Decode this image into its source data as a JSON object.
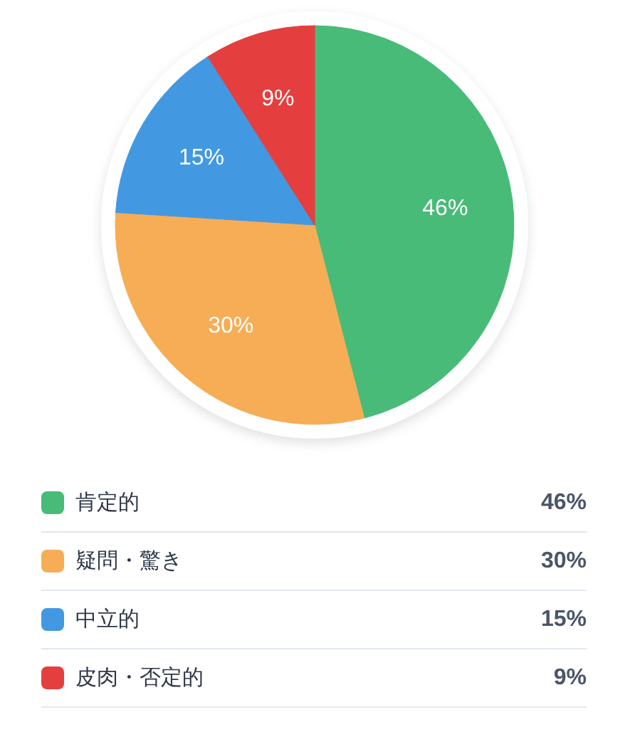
{
  "chart_data": {
    "type": "pie",
    "categories": [
      "肯定的",
      "疑問・驚き",
      "中立的",
      "皮肉・否定的"
    ],
    "values": [
      46,
      30,
      15,
      9
    ],
    "colors": [
      "#48bb78",
      "#f6ad55",
      "#4299e1",
      "#e53e3e"
    ],
    "value_labels": [
      "46%",
      "30%",
      "15%",
      "9%"
    ],
    "legend": "bottom"
  }
}
